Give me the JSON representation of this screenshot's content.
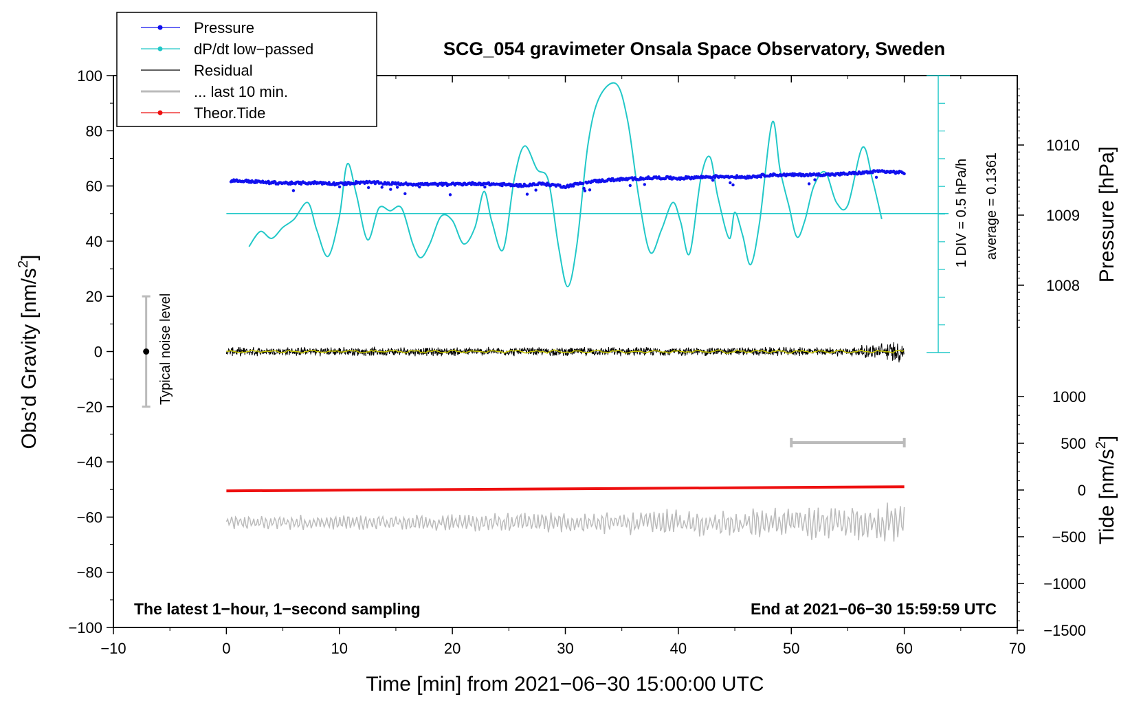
{
  "chart_data": {
    "type": "line",
    "title": "SCG_054 gravimeter Onsala Space Observatory, Sweden",
    "xlabel": "Time [min] from 2021−06−30 15:00:00 UTC",
    "ylabel_left": "Obs’d Gravity [nm/s",
    "ylabel_left_sup": "2",
    "ylabel_left_end": "]",
    "ylabel_pressure": "Pressure [hPa]",
    "ylabel_tide": "Tide [nm/s",
    "ylabel_tide_sup": "2",
    "ylabel_tide_end": "]",
    "xlim": [
      -10,
      70
    ],
    "ylim_left": [
      -100,
      100
    ],
    "x_ticks": [
      "−10",
      "0",
      "10",
      "20",
      "30",
      "40",
      "50",
      "60",
      "70"
    ],
    "x_tick_values": [
      -10,
      0,
      10,
      20,
      30,
      40,
      50,
      60,
      70
    ],
    "y_ticks_left": [
      "100",
      "80",
      "60",
      "40",
      "20",
      "0",
      "−20",
      "−40",
      "−60",
      "−80",
      "−100"
    ],
    "y_tick_values_left": [
      100,
      80,
      60,
      40,
      20,
      0,
      -20,
      -40,
      -60,
      -80,
      -100
    ],
    "pressure_ticks": [
      "1010",
      "1009",
      "1008"
    ],
    "pressure_tick_values": [
      1010,
      1009,
      1008
    ],
    "tide_ticks": [
      "1000",
      "500",
      "0",
      "−500",
      "−1000",
      "−1500"
    ],
    "tide_tick_values": [
      1000,
      500,
      0,
      -500,
      -1000,
      -1500
    ],
    "legend": [
      {
        "label": "Pressure",
        "color": "#1010ee",
        "marker": true
      },
      {
        "label": "dP/dt low−passed",
        "color": "#22c8c8",
        "marker": true
      },
      {
        "label": "Residual",
        "color": "#000000",
        "marker": false
      },
      {
        "label": "... last 10 min.",
        "color": "#bbbbbb",
        "marker": false
      },
      {
        "label": "Theor.Tide",
        "color": "#ee1010",
        "marker": true
      }
    ],
    "legend_position": "top-left",
    "noise_label": "Typical noise level",
    "noise_range": [
      -20,
      20
    ],
    "dpdt_scale_label": "1 DIV = 0.5 hPa/h",
    "dpdt_average_label": "average = 0.1361",
    "dpdt_baseline": 50,
    "last10_bar_minutes": [
      50,
      60
    ],
    "last10_bar_level": -33,
    "footer_left": "The latest 1−hour, 1−second sampling",
    "footer_right": "End at 2021−06−30 15:59:59 UTC",
    "series": [
      {
        "name": "Pressure",
        "color": "#1010ee",
        "x": [
          0,
          2,
          4,
          6,
          8,
          10,
          12,
          14,
          16,
          18,
          20,
          22,
          24,
          26,
          28,
          30,
          32,
          34,
          36,
          38,
          40,
          42,
          44,
          46,
          48,
          50,
          52,
          54,
          56,
          58,
          60
        ],
        "y": [
          62,
          61.7,
          61.2,
          61,
          61.2,
          60.7,
          61.4,
          61,
          60.7,
          60.6,
          60.6,
          60.9,
          60.6,
          60.2,
          60.8,
          59.8,
          61.5,
          62.2,
          62.6,
          63,
          62.8,
          63.2,
          63.5,
          63.2,
          64,
          64,
          64.1,
          64.2,
          64.7,
          65.3,
          64.8
        ]
      },
      {
        "name": "dP/dt low-passed",
        "color": "#22c8c8",
        "x": [
          2,
          3,
          4,
          5,
          6,
          7.2,
          8,
          9,
          10,
          10.7,
          11.5,
          12.5,
          13.5,
          14.5,
          15.5,
          16.5,
          17.2,
          18,
          19,
          20,
          21,
          22,
          22.8,
          23.5,
          24.5,
          25.5,
          26.4,
          27.5,
          28.5,
          29.4,
          30.2,
          31,
          32,
          33,
          34.5,
          35.5,
          36.5,
          37.5,
          38.5,
          39.5,
          40.2,
          41,
          42,
          42.8,
          43.5,
          44.5,
          45,
          45.7,
          46.4,
          47.2,
          48.3,
          49,
          49.8,
          50.5,
          51.2,
          52,
          53,
          54,
          55,
          56.3,
          57.2,
          58
        ],
        "y": [
          38,
          43.5,
          41,
          45,
          48,
          54,
          44,
          34.5,
          49,
          68,
          57,
          40.5,
          52,
          51,
          52,
          39,
          34,
          39,
          49,
          47.5,
          39,
          45,
          58,
          47,
          37,
          63,
          74.5,
          66,
          62,
          38,
          23.5,
          38,
          75,
          92,
          97,
          84,
          56,
          36,
          44,
          54,
          47,
          35.5,
          63,
          70.5,
          56,
          41,
          50.5,
          42,
          31.5,
          47,
          83,
          66,
          52.5,
          41.5,
          47.5,
          60,
          65,
          54,
          53,
          74,
          62,
          48
        ]
      },
      {
        "name": "Residual",
        "color": "#000000",
        "x_range": [
          0,
          60
        ],
        "amplitude_start": 1.2,
        "amplitude_end": 3.2,
        "center": 0
      },
      {
        "name": "... last 10 min.",
        "color": "#bbbbbb",
        "x_range": [
          0,
          60
        ],
        "center": -62,
        "amplitude_start": 1.8,
        "amplitude_end": 5
      },
      {
        "name": "Theor.Tide",
        "color": "#ee1010",
        "x": [
          0,
          60
        ],
        "y": [
          -50.5,
          -49
        ]
      }
    ]
  }
}
